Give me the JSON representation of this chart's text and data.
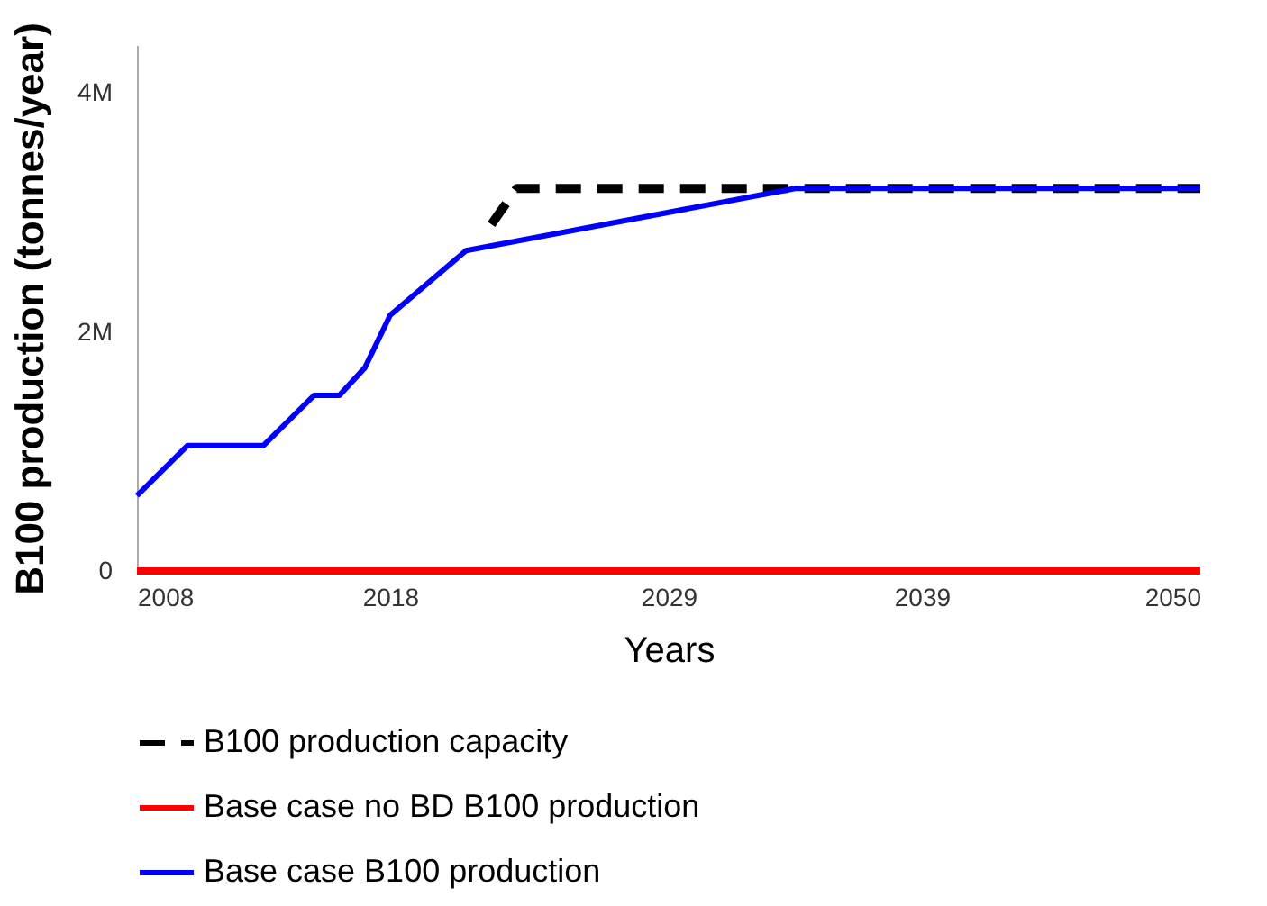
{
  "chart_data": {
    "type": "line",
    "xlabel": "Years",
    "ylabel": "B100 production (tonnes/year)",
    "xlim": [
      2008,
      2050
    ],
    "ylim": [
      0,
      4400000
    ],
    "xticks": [
      2008,
      2018,
      2029,
      2039,
      2050
    ],
    "yticks": [
      0,
      {
        "value": 2000000,
        "label": "2M"
      },
      {
        "value": 4000000,
        "label": "4M"
      }
    ],
    "legend": "bottom",
    "marker": "none",
    "series": [
      {
        "name": "B100 production capacity",
        "color": "#000000",
        "line_style": "dashed",
        "x": [
          2022,
          2023,
          2034,
          2050
        ],
        "values": [
          2900000,
          3200000,
          3200000,
          3200000
        ]
      },
      {
        "name": "Base case no BD B100 production",
        "color": "#ff0000",
        "line_style": "solid",
        "x": [
          2008,
          2050
        ],
        "values": [
          0,
          0
        ]
      },
      {
        "name": "Base case B100 production",
        "color": "#0000ff",
        "line_style": "solid",
        "x": [
          2008,
          2010,
          2013,
          2015,
          2016,
          2017,
          2018,
          2021,
          2034,
          2050
        ],
        "values": [
          630000,
          1050000,
          1050000,
          1470000,
          1470000,
          1700000,
          2140000,
          2680000,
          3200000,
          3200000
        ]
      }
    ]
  }
}
